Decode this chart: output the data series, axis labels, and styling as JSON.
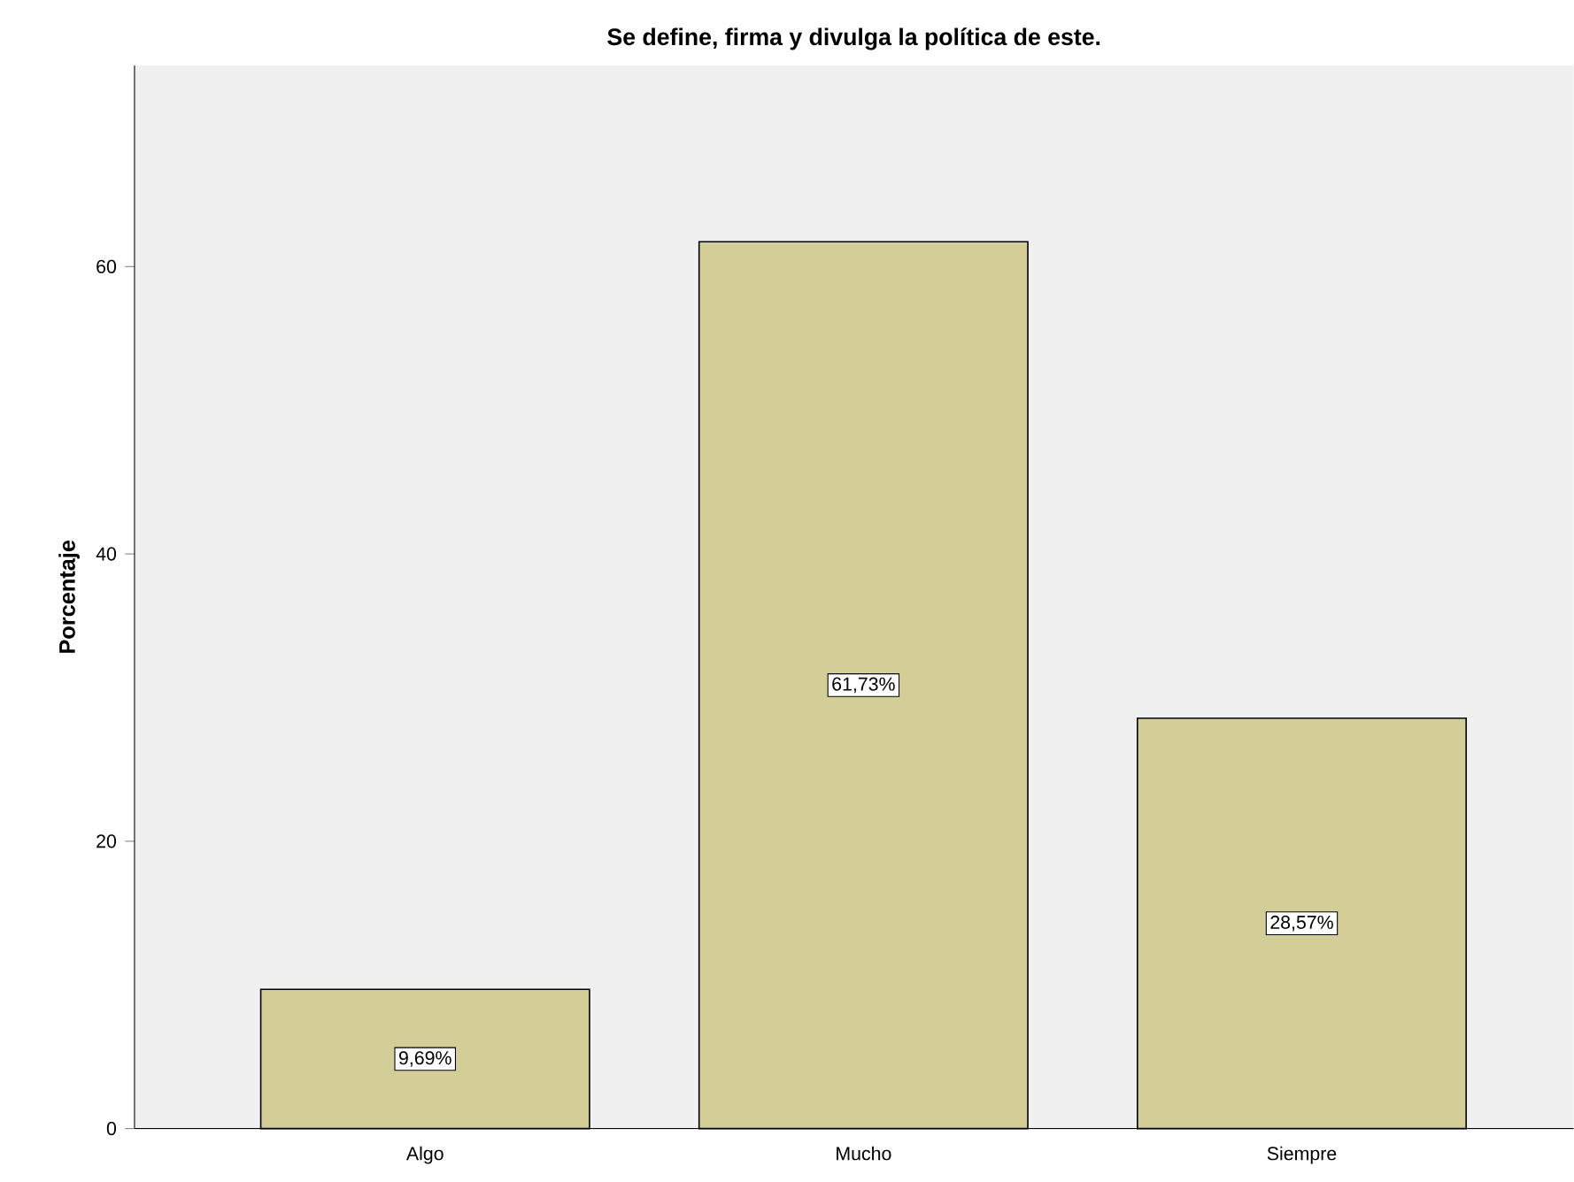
{
  "chart_data": {
    "type": "bar",
    "title": "Se define, firma y divulga la política de este.",
    "ylabel": "Porcentaje",
    "categories": [
      "Algo",
      "Mucho",
      "Siempre"
    ],
    "values": [
      9.69,
      61.73,
      28.57
    ],
    "value_labels": [
      "9,69%",
      "61,73%",
      "28,57%"
    ],
    "color": "#d3ce97",
    "ylim": [
      0,
      74
    ],
    "yticks": [
      0,
      20,
      40,
      60
    ]
  }
}
